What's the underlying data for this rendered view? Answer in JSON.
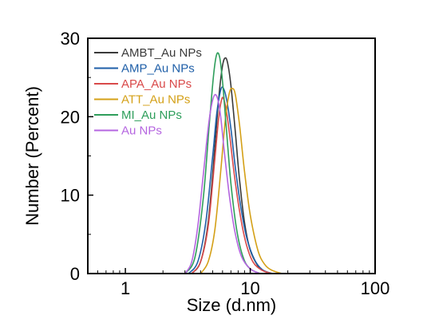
{
  "chart_data": {
    "type": "line",
    "xlabel": "Size (d.nm)",
    "ylabel": "Number (Percent)",
    "x_scale": "log",
    "xlim": [
      0.5,
      100
    ],
    "ylim": [
      0,
      30
    ],
    "x_ticks": [
      1,
      10,
      100
    ],
    "x_tick_labels": [
      "1",
      "10",
      "100"
    ],
    "y_ticks": [
      0,
      10,
      20,
      30
    ],
    "y_tick_labels": [
      "0",
      "10",
      "20",
      "30"
    ],
    "grid": false,
    "legend_position": "top-left",
    "series": [
      {
        "name": "AMBT_Au NPs",
        "color": "#3a3a3a",
        "x": [
          3.4,
          4.0,
          4.6,
          5.2,
          5.6,
          6.0,
          6.3,
          6.6,
          7.0,
          7.6,
          8.2,
          9.0,
          10.0,
          11.5,
          13.0,
          15.0
        ],
        "y": [
          0,
          1.5,
          6.5,
          16.0,
          22.5,
          26.5,
          27.5,
          26.8,
          24.0,
          18.0,
          12.0,
          6.5,
          3.0,
          1.0,
          0.3,
          0
        ]
      },
      {
        "name": "AMP_Au NPs",
        "color": "#1f5fa8",
        "x": [
          3.2,
          3.8,
          4.4,
          5.0,
          5.4,
          5.8,
          6.1,
          6.5,
          7.0,
          7.6,
          8.4,
          9.4,
          10.8,
          12.5,
          15.0
        ],
        "y": [
          0,
          1.5,
          6.5,
          15.0,
          20.5,
          23.4,
          23.6,
          22.0,
          18.5,
          13.5,
          8.5,
          4.5,
          1.8,
          0.5,
          0
        ]
      },
      {
        "name": "APA_Au NPs",
        "color": "#d94a4a",
        "x": [
          3.4,
          4.0,
          4.6,
          5.2,
          5.6,
          5.9,
          6.1,
          6.4,
          6.8,
          7.4,
          8.2,
          9.2,
          10.5,
          12.5,
          15.0
        ],
        "y": [
          0,
          1.5,
          6.0,
          14.5,
          20.0,
          22.2,
          22.3,
          21.0,
          18.0,
          13.0,
          8.0,
          4.0,
          1.5,
          0.4,
          0
        ]
      },
      {
        "name": "ATT_Au NPs",
        "color": "#d4a017",
        "x": [
          4.0,
          4.6,
          5.2,
          5.8,
          6.3,
          6.8,
          7.2,
          7.6,
          8.2,
          9.0,
          10.0,
          11.5,
          13.0,
          15.0,
          18.0
        ],
        "y": [
          0,
          1.5,
          5.5,
          13.0,
          19.5,
          23.0,
          23.6,
          22.8,
          19.0,
          13.0,
          7.5,
          3.0,
          1.2,
          0.4,
          0
        ]
      },
      {
        "name": "MI_Au NPs",
        "color": "#2e9e5b",
        "x": [
          3.0,
          3.6,
          4.2,
          4.7,
          5.1,
          5.4,
          5.7,
          6.0,
          6.4,
          7.0,
          7.8,
          8.8,
          10.0,
          12.0
        ],
        "y": [
          0,
          2.0,
          9.5,
          19.0,
          25.5,
          28.0,
          27.5,
          24.5,
          19.0,
          11.5,
          5.5,
          2.0,
          0.6,
          0
        ]
      },
      {
        "name": "Au NPs",
        "color": "#b565e0",
        "x": [
          3.0,
          3.4,
          3.8,
          4.2,
          4.6,
          4.9,
          5.2,
          5.5,
          5.8,
          6.2,
          6.8,
          7.5,
          8.5,
          10.0,
          12.0
        ],
        "y": [
          0,
          1.5,
          6.0,
          12.5,
          18.5,
          21.5,
          22.8,
          22.2,
          20.0,
          15.5,
          10.0,
          5.5,
          2.2,
          0.6,
          0
        ]
      }
    ]
  }
}
